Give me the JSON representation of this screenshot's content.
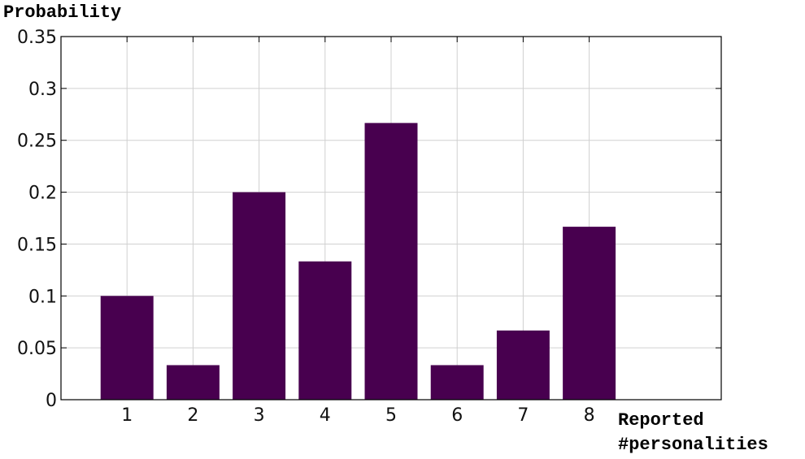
{
  "chart_data": {
    "type": "bar",
    "ylabel": "Probability",
    "xlabel": [
      "Reported",
      "#personalities"
    ],
    "x": [
      1,
      2,
      3,
      4,
      5,
      6,
      7,
      8
    ],
    "values": [
      0.1,
      0.0333,
      0.2,
      0.1333,
      0.2667,
      0.0333,
      0.0667,
      0.1667
    ],
    "color": "#48004f",
    "xlim": [
      0,
      10
    ],
    "xticks": [
      1,
      2,
      3,
      4,
      5,
      6,
      7,
      8
    ],
    "ylim": [
      0,
      0.35
    ],
    "yticks": [
      0,
      0.05,
      0.1,
      0.15,
      0.2,
      0.25,
      0.3,
      0.35
    ],
    "grid": true
  }
}
